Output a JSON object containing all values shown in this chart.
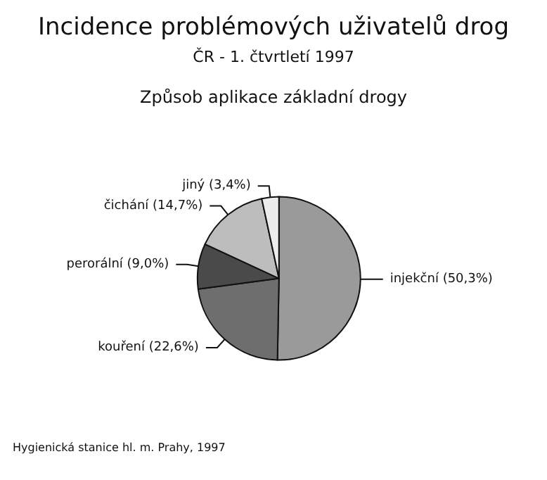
{
  "chart_data": {
    "type": "pie",
    "title": "Incidence problémových uživatelů drog",
    "subtitle": "ČR - 1. čtvrtletí 1997\nZpůsob aplikace základní drogy",
    "categories": [
      "injekční",
      "kouření",
      "perorální",
      "čichání",
      "jiný"
    ],
    "values": [
      50.3,
      22.6,
      9.0,
      14.7,
      3.4
    ],
    "value_labels": [
      "(50,3%)",
      "(22,6%)",
      "(9,0%)",
      "(14,7%)",
      "(3,4%)"
    ],
    "colors": [
      "#9a9a9a",
      "#6e6e6e",
      "#4a4a4a",
      "#bdbdbd",
      "#ececec"
    ],
    "annotations": [
      "Hygienická stanice hl. m. Prahy, 1997"
    ],
    "legend": false
  }
}
